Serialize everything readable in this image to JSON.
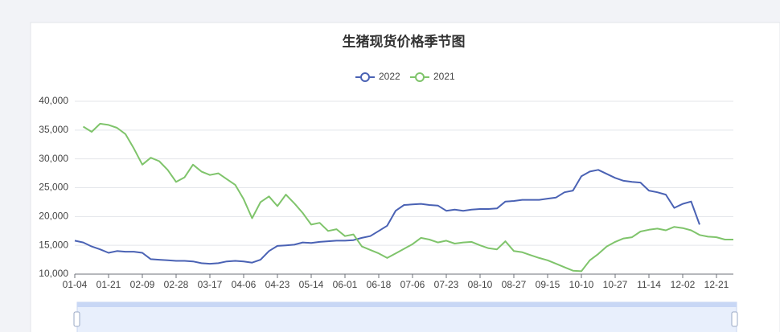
{
  "chart_data": {
    "type": "line",
    "title": "生猪现货价格季节图",
    "categories": [
      "01-04",
      null,
      null,
      null,
      "01-21",
      null,
      null,
      null,
      "02-09",
      null,
      null,
      null,
      "02-28",
      null,
      null,
      null,
      "03-17",
      null,
      null,
      null,
      "04-06",
      null,
      null,
      null,
      "04-23",
      null,
      null,
      null,
      "05-14",
      null,
      null,
      null,
      "06-01",
      null,
      null,
      null,
      "06-18",
      null,
      null,
      null,
      "07-06",
      null,
      null,
      null,
      "07-23",
      null,
      null,
      null,
      "08-10",
      null,
      null,
      null,
      "08-27",
      null,
      null,
      null,
      "09-15",
      null,
      null,
      null,
      "10-10",
      null,
      null,
      null,
      "10-27",
      null,
      null,
      null,
      "11-14",
      null,
      null,
      null,
      "12-02",
      null,
      null,
      null,
      "12-21",
      null,
      null
    ],
    "series": [
      {
        "name": "2022",
        "color": "#4a62b4",
        "values": [
          15800,
          15500,
          14800,
          14300,
          13700,
          14000,
          13900,
          13900,
          13700,
          12600,
          12500,
          12400,
          12300,
          12300,
          12200,
          11900,
          11800,
          11900,
          12200,
          12300,
          12200,
          12000,
          12500,
          14000,
          14900,
          15000,
          15100,
          15500,
          15400,
          15600,
          15700,
          15800,
          15800,
          15900,
          16300,
          16600,
          17500,
          18400,
          21000,
          22000,
          22100,
          22200,
          22000,
          21900,
          21000,
          21200,
          21000,
          21200,
          21300,
          21300,
          21400,
          22600,
          22700,
          22900,
          22900,
          22900,
          23100,
          23300,
          24200,
          24500,
          27000,
          27800,
          28100,
          27400,
          26700,
          26200,
          26000,
          25900,
          24500,
          24200,
          23800,
          21500,
          22200,
          22600,
          18600,
          null,
          null,
          null,
          null
        ]
      },
      {
        "name": "2021",
        "color": "#7fc46b",
        "values": [
          null,
          35600,
          34700,
          36100,
          35900,
          35400,
          34300,
          31800,
          29000,
          30200,
          29600,
          28100,
          26000,
          26800,
          29000,
          27800,
          27200,
          27500,
          26500,
          25500,
          23000,
          19700,
          22500,
          23500,
          21800,
          23800,
          22300,
          20600,
          18600,
          18900,
          17500,
          17800,
          16600,
          16900,
          14800,
          14200,
          13600,
          12800,
          13600,
          14400,
          15200,
          16300,
          16000,
          15500,
          15800,
          15300,
          15500,
          15600,
          15000,
          14500,
          14300,
          15700,
          14000,
          13800,
          13300,
          12800,
          12400,
          11800,
          11200,
          10600,
          10500,
          12400,
          13500,
          14800,
          15600,
          16200,
          16400,
          17400,
          17700,
          17900,
          17600,
          18200,
          18000,
          17600,
          16800,
          16500,
          16400,
          16000,
          16000
        ]
      }
    ],
    "ylim": [
      10000,
      40000
    ],
    "yticks": [
      {
        "value": 10000,
        "label": "10,000"
      },
      {
        "value": 15000,
        "label": "15,000"
      },
      {
        "value": 20000,
        "label": "20,000"
      },
      {
        "value": 25000,
        "label": "25,000"
      },
      {
        "value": 30000,
        "label": "30,000"
      },
      {
        "value": 35000,
        "label": "35,000"
      },
      {
        "value": 40000,
        "label": "40,000"
      }
    ],
    "grid": true
  }
}
